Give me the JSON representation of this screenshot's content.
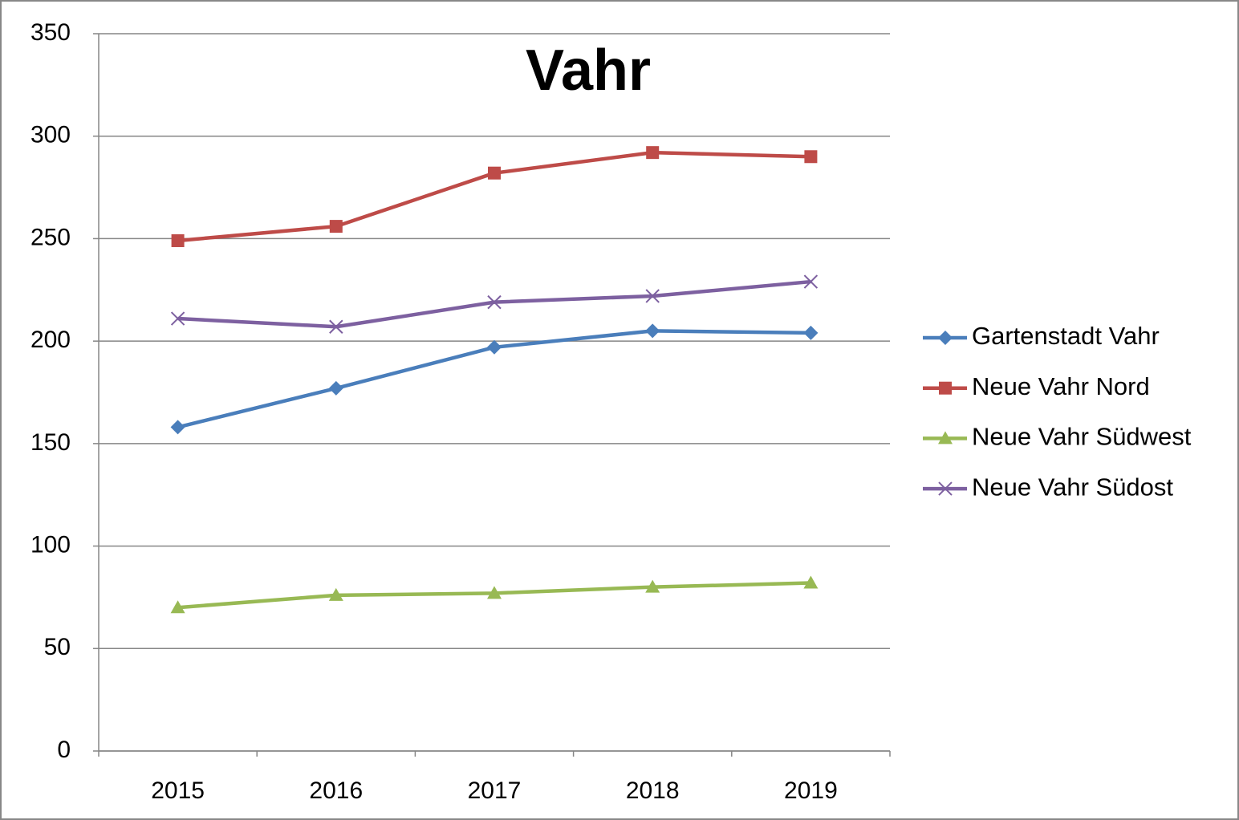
{
  "chart_data": {
    "type": "line",
    "title": "Vahr",
    "categories": [
      "2015",
      "2016",
      "2017",
      "2018",
      "2019"
    ],
    "series": [
      {
        "name": "Gartenstadt Vahr",
        "color": "#4a7ebb",
        "marker": "diamond",
        "values": [
          158,
          177,
          197,
          205,
          204
        ]
      },
      {
        "name": "Neue Vahr Nord",
        "color": "#be4b48",
        "marker": "square",
        "values": [
          249,
          256,
          282,
          292,
          290
        ]
      },
      {
        "name": "Neue Vahr Südwest",
        "color": "#98b954",
        "marker": "triangle",
        "values": [
          70,
          76,
          77,
          80,
          82
        ]
      },
      {
        "name": "Neue Vahr Südost",
        "color": "#7d60a0",
        "marker": "x",
        "values": [
          211,
          207,
          219,
          222,
          229
        ]
      }
    ],
    "ylim": [
      0,
      350
    ],
    "yticks": [
      0,
      50,
      100,
      150,
      200,
      250,
      300,
      350
    ],
    "grid": true,
    "legend": "right"
  }
}
